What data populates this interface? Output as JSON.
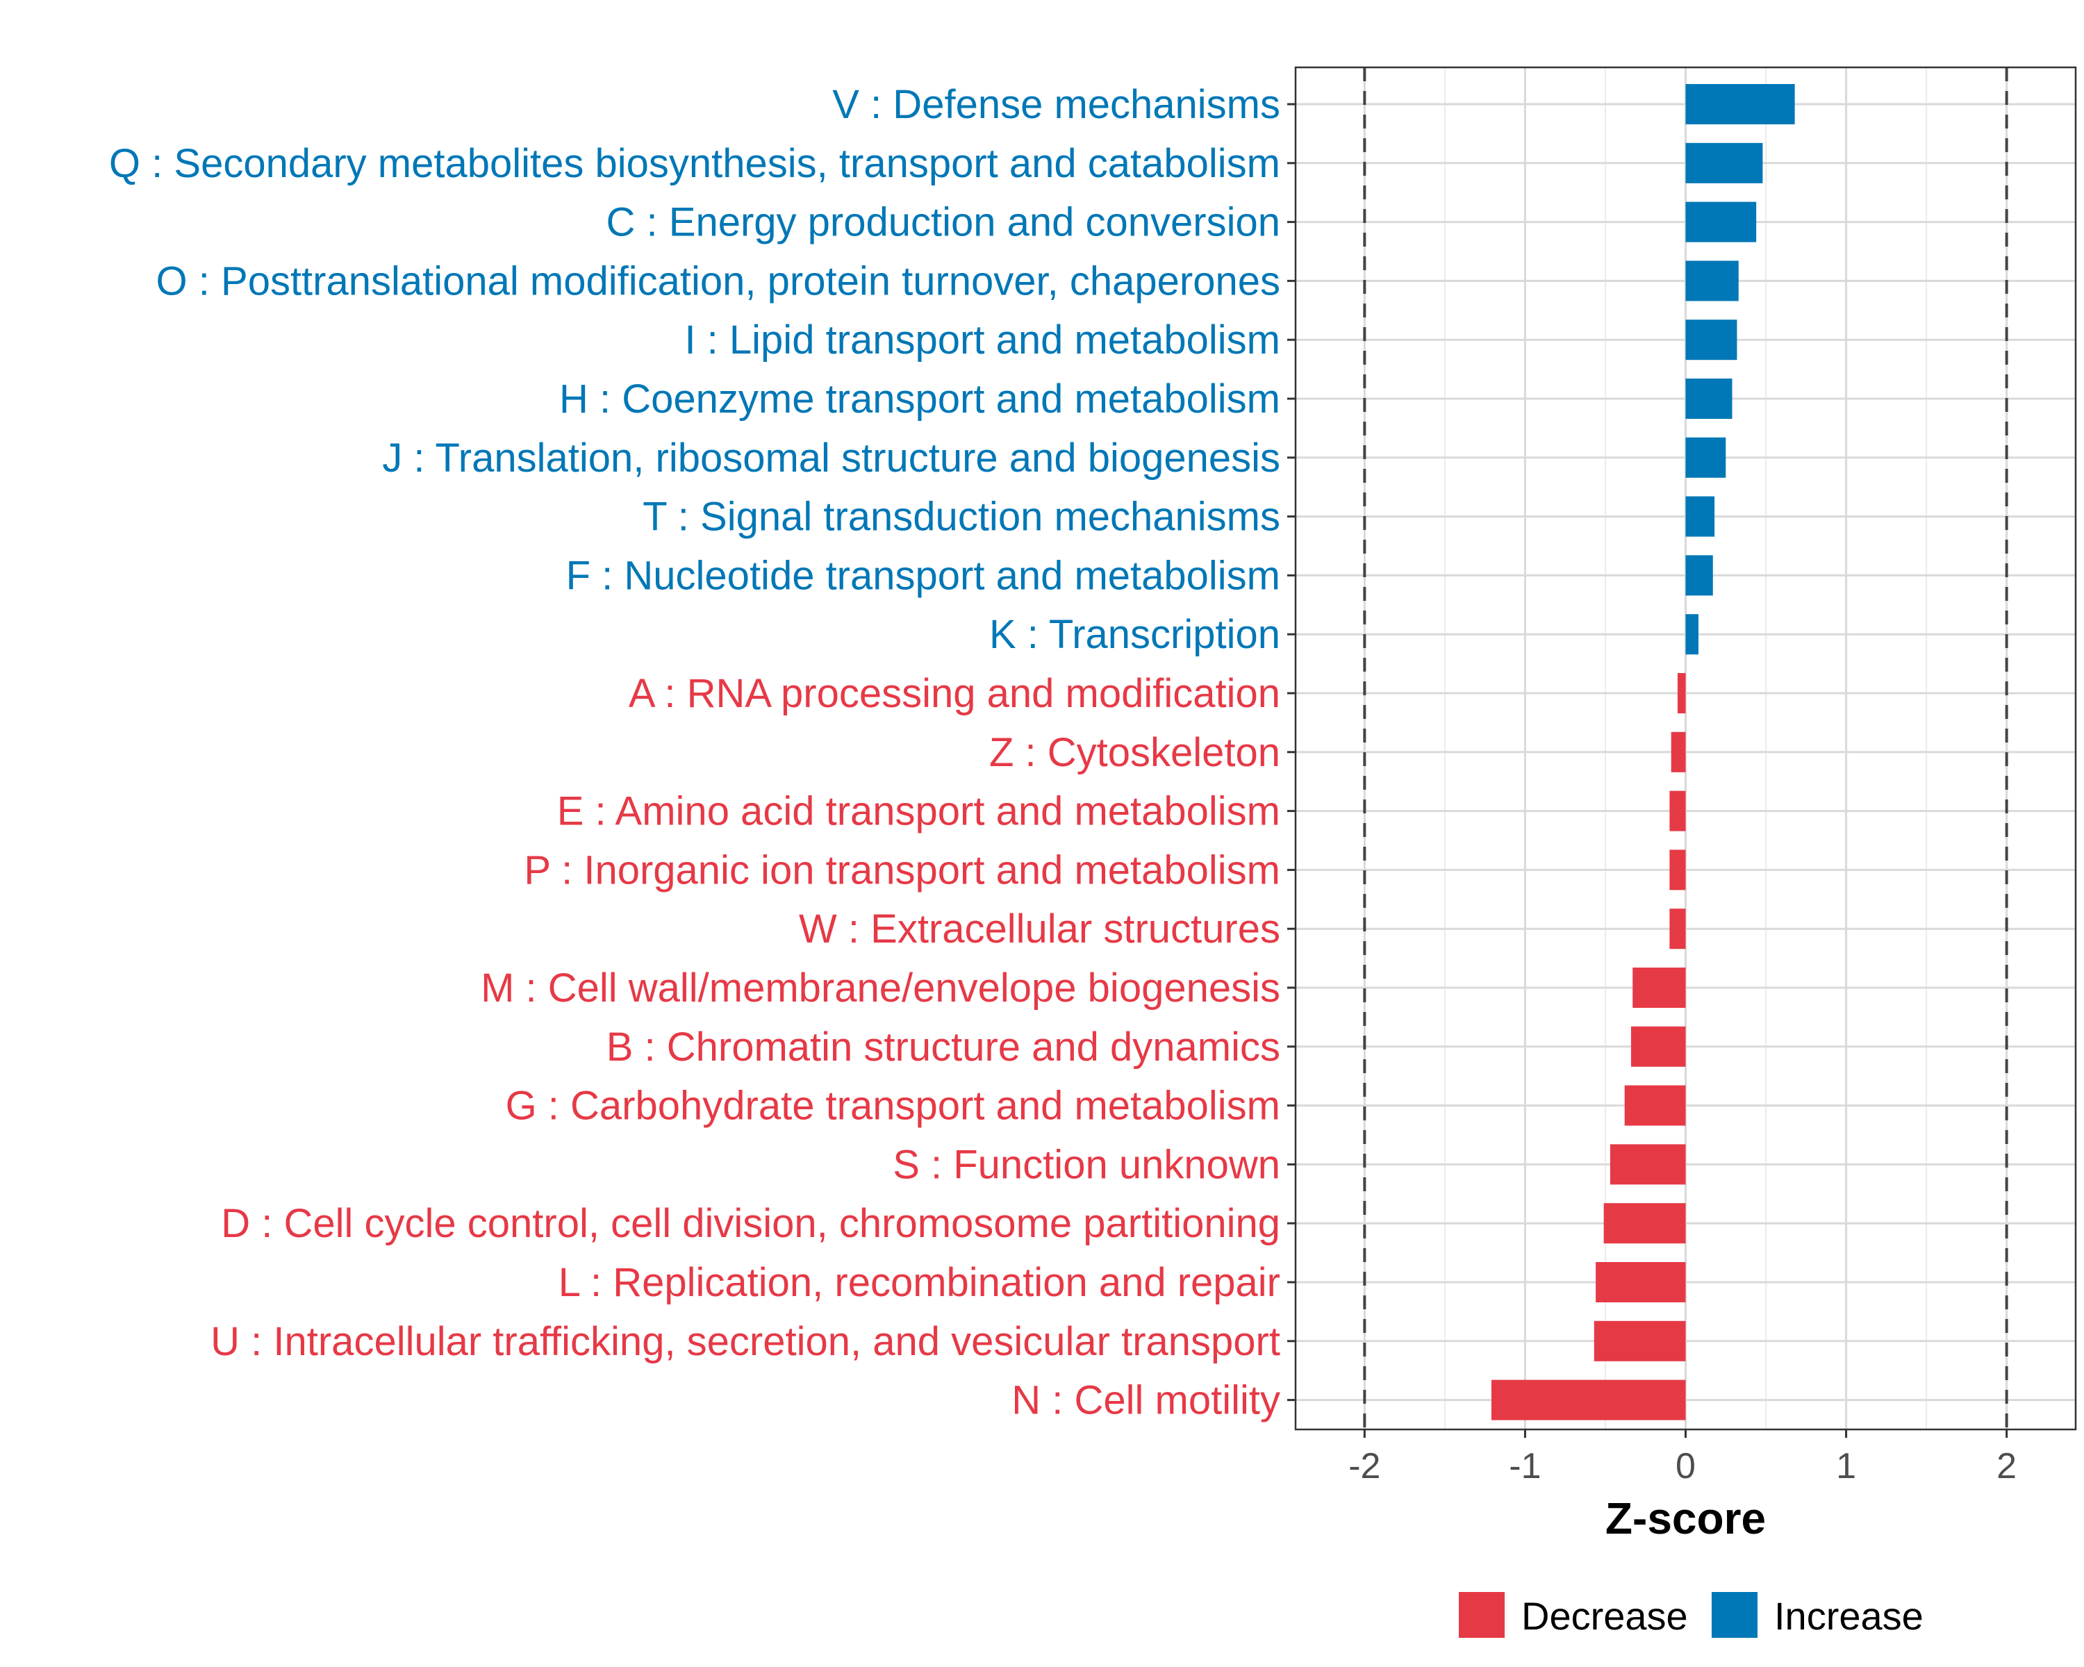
{
  "chart_data": {
    "type": "bar",
    "orientation": "horizontal",
    "xlabel": "Z-score",
    "ylabel": "",
    "xlim": [
      -2.43,
      2.43
    ],
    "xticks": [
      -2,
      -1,
      0,
      1,
      2
    ],
    "xtick_labels": [
      "-2",
      "-1",
      "0",
      "1",
      "2"
    ],
    "reference_lines": [
      -2,
      2
    ],
    "grid": true,
    "legend_position": "bottom",
    "colors": {
      "Decrease": "#E63946",
      "Increase": "#0077B6"
    },
    "legend": [
      {
        "label": "Decrease",
        "color": "#E63946"
      },
      {
        "label": "Increase",
        "color": "#0077B6"
      }
    ],
    "bars": [
      {
        "category": "V : Defense mechanisms",
        "value": 0.68,
        "group": "Increase"
      },
      {
        "category": "Q : Secondary metabolites biosynthesis, transport and catabolism",
        "value": 0.48,
        "group": "Increase"
      },
      {
        "category": "C : Energy production and conversion",
        "value": 0.44,
        "group": "Increase"
      },
      {
        "category": "O : Posttranslational modification, protein turnover, chaperones",
        "value": 0.33,
        "group": "Increase"
      },
      {
        "category": "I : Lipid transport and metabolism",
        "value": 0.32,
        "group": "Increase"
      },
      {
        "category": "H : Coenzyme transport and metabolism",
        "value": 0.29,
        "group": "Increase"
      },
      {
        "category": "J : Translation, ribosomal structure and biogenesis",
        "value": 0.25,
        "group": "Increase"
      },
      {
        "category": "T : Signal transduction mechanisms",
        "value": 0.18,
        "group": "Increase"
      },
      {
        "category": "F : Nucleotide transport and metabolism",
        "value": 0.17,
        "group": "Increase"
      },
      {
        "category": "K : Transcription",
        "value": 0.08,
        "group": "Increase"
      },
      {
        "category": "A : RNA processing and modification",
        "value": -0.05,
        "group": "Decrease"
      },
      {
        "category": "Z : Cytoskeleton",
        "value": -0.09,
        "group": "Decrease"
      },
      {
        "category": "E : Amino acid transport and metabolism",
        "value": -0.1,
        "group": "Decrease"
      },
      {
        "category": "P : Inorganic ion transport and metabolism",
        "value": -0.1,
        "group": "Decrease"
      },
      {
        "category": "W : Extracellular structures",
        "value": -0.1,
        "group": "Decrease"
      },
      {
        "category": "M : Cell wall/membrane/envelope biogenesis",
        "value": -0.33,
        "group": "Decrease"
      },
      {
        "category": "B : Chromatin structure and dynamics",
        "value": -0.34,
        "group": "Decrease"
      },
      {
        "category": "G : Carbohydrate transport and metabolism",
        "value": -0.38,
        "group": "Decrease"
      },
      {
        "category": "S : Function unknown",
        "value": -0.47,
        "group": "Decrease"
      },
      {
        "category": "D : Cell cycle control, cell division, chromosome partitioning",
        "value": -0.51,
        "group": "Decrease"
      },
      {
        "category": "L : Replication, recombination and repair",
        "value": -0.56,
        "group": "Decrease"
      },
      {
        "category": "U : Intracellular trafficking, secretion, and vesicular transport",
        "value": -0.57,
        "group": "Decrease"
      },
      {
        "category": "N : Cell motility",
        "value": -1.21,
        "group": "Decrease"
      }
    ]
  }
}
